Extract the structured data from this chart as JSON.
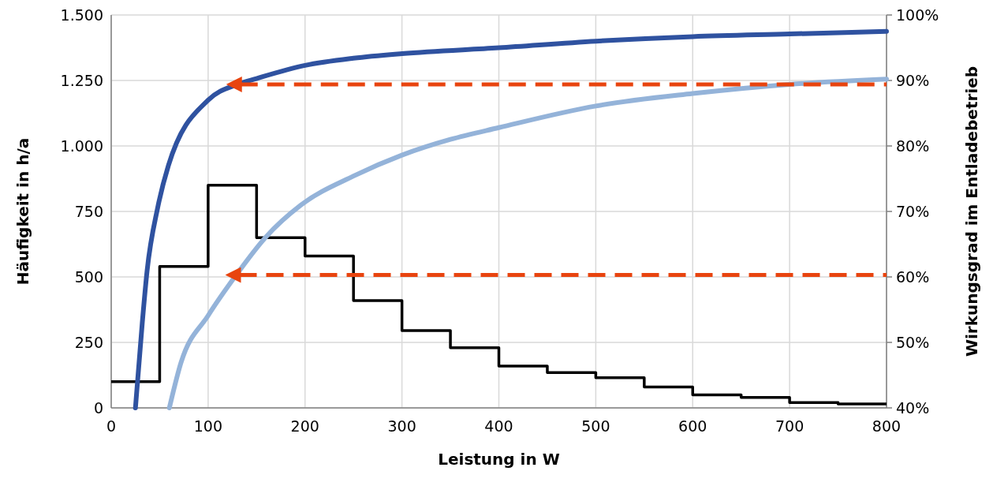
{
  "chart_data": {
    "type": "line",
    "xlabel": "Leistung in W",
    "ylabel": "Häufigkeit in h/a",
    "y2label": "Wirkungsgrad im Entladebetrieb",
    "xlim": [
      0,
      800
    ],
    "xticks": [
      0,
      100,
      200,
      300,
      400,
      500,
      600,
      700,
      800
    ],
    "ylim": [
      0,
      1500
    ],
    "yticks": [
      0,
      250,
      500,
      750,
      {
        "value": 1000,
        "label": "1.000"
      },
      {
        "value": 1250,
        "label": "1.250"
      },
      {
        "value": 1500,
        "label": "1.500"
      }
    ],
    "y2lim": [
      40,
      100
    ],
    "y2ticks": [
      {
        "value": 40,
        "label": "40%"
      },
      {
        "value": 50,
        "label": "50%"
      },
      {
        "value": 60,
        "label": "60%"
      },
      {
        "value": 70,
        "label": "70%"
      },
      {
        "value": 80,
        "label": "80%"
      },
      {
        "value": 90,
        "label": "90%"
      },
      {
        "value": 100,
        "label": "100%"
      }
    ],
    "grid": true,
    "series": [
      {
        "type": "step",
        "color": "#000000",
        "x": [
          0,
          50,
          100,
          150,
          200,
          250,
          300,
          350,
          400,
          450,
          500,
          550,
          600,
          650,
          700,
          750,
          800
        ],
        "values": [
          100,
          540,
          850,
          650,
          580,
          410,
          295,
          230,
          160,
          135,
          115,
          80,
          50,
          40,
          20,
          15,
          15
        ]
      },
      {
        "axis": "y2",
        "color": "#2f52a0",
        "x": [
          25,
          32,
          37,
          48,
          59,
          100,
          130,
          150,
          200,
          250,
          300,
          400,
          500,
          600,
          700,
          800
        ],
        "values": [
          40,
          52.9,
          60.9,
          70.6,
          77,
          87,
          89.4,
          90.3,
          92.3,
          93.4,
          94.1,
          95,
          96,
          96.7,
          97.1,
          97.5
        ]
      },
      {
        "axis": "y2",
        "color": "#94b3d9",
        "x": [
          60,
          72,
          100,
          129,
          159,
          196,
          250,
          300,
          350,
          400,
          500,
          600,
          700,
          800
        ],
        "values": [
          40,
          46.9,
          54.1,
          60.3,
          66,
          71,
          75.4,
          78.6,
          81,
          82.8,
          86.1,
          88,
          89.4,
          90.2
        ]
      }
    ],
    "ref_lines": [
      {
        "axis": "y2",
        "value": 89.4,
        "color": "#e8440f",
        "line_style": "dashed"
      },
      {
        "axis": "y2",
        "value": 60.3,
        "color": "#e8440f",
        "line_style": "dashed"
      }
    ]
  }
}
